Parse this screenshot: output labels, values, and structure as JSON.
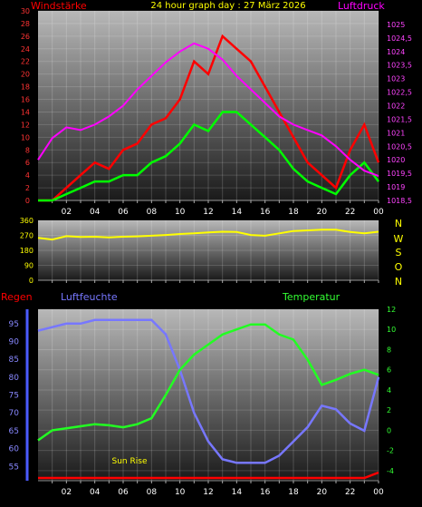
{
  "header": {
    "left_label": "Windstärke",
    "title": "24 hour graph day : 27 März 2026",
    "right_label": "Luftdruck"
  },
  "middle": {
    "compass": [
      "N",
      "W",
      "S",
      "O",
      "N"
    ]
  },
  "bottom_header": {
    "rain_label": "Regen",
    "humidity_label": "Luftfeuchte",
    "temp_label": "Temperatur"
  },
  "annotations": {
    "sunrise": "Sun Rise"
  },
  "colors": {
    "wind_gust": "#ff0000",
    "wind_avg": "#00ff00",
    "pressure": "#ff00ff",
    "direction": "#ffff00",
    "humidity": "#7777ff",
    "temperature": "#22ff22",
    "rain": "#ff0000",
    "header_title": "#ffff00",
    "axis_text": "#ffffff"
  },
  "chart_data": [
    {
      "type": "line",
      "x_ticks": [
        "02",
        "04",
        "06",
        "08",
        "10",
        "12",
        "14",
        "16",
        "18",
        "20",
        "22",
        "00"
      ],
      "ylim_left": [
        0,
        30
      ],
      "yticks_left": [
        0,
        2,
        4,
        6,
        8,
        10,
        12,
        14,
        16,
        18,
        20,
        22,
        24,
        26,
        28,
        30
      ],
      "ylim_right": [
        1018.5,
        1025.5
      ],
      "yticks_right": [
        "1018,5",
        "1019",
        "1019,5",
        "1020",
        "1020,5",
        "1021",
        "1021,5",
        "1022",
        "1022,5",
        "1023",
        "1023,5",
        "1024",
        "1024,5",
        "1025"
      ],
      "x_hours": [
        0,
        1,
        2,
        3,
        4,
        5,
        6,
        7,
        8,
        9,
        10,
        11,
        12,
        13,
        14,
        15,
        16,
        17,
        18,
        19,
        20,
        21,
        22,
        23,
        24
      ],
      "series": [
        {
          "name": "Windstärke",
          "axis": "left",
          "values": [
            0,
            0,
            2,
            4,
            6,
            5,
            8,
            9,
            12,
            13,
            16,
            22,
            20,
            26,
            24,
            22,
            18,
            14,
            10,
            6,
            4,
            2,
            8,
            12,
            6
          ]
        },
        {
          "name": "Windstärke",
          "axis": "left",
          "values": [
            0,
            0,
            1,
            2,
            3,
            3,
            4,
            4,
            6,
            7,
            9,
            12,
            11,
            14,
            14,
            12,
            10,
            8,
            5,
            3,
            2,
            1,
            4,
            6,
            3
          ]
        },
        {
          "name": "Luftdruck",
          "axis": "right",
          "values": [
            1020,
            1020.8,
            1021.2,
            1021.1,
            1021.3,
            1021.6,
            1022,
            1022.6,
            1023.1,
            1023.6,
            1024,
            1024.3,
            1024.1,
            1023.7,
            1023.1,
            1022.6,
            1022.1,
            1021.6,
            1021.3,
            1021.1,
            1020.9,
            1020.5,
            1020,
            1019.6,
            1019.4
          ]
        }
      ]
    },
    {
      "type": "line",
      "ylim": [
        0,
        360
      ],
      "yticks": [
        0,
        90,
        180,
        270,
        360
      ],
      "x_hours": [
        0,
        1,
        2,
        3,
        4,
        5,
        6,
        7,
        8,
        9,
        10,
        11,
        12,
        13,
        14,
        15,
        16,
        17,
        18,
        19,
        20,
        21,
        22,
        23,
        24
      ],
      "series": [
        {
          "name": "Windrichtung",
          "values": [
            255,
            245,
            265,
            260,
            262,
            258,
            262,
            264,
            268,
            272,
            278,
            282,
            288,
            292,
            290,
            272,
            268,
            282,
            296,
            300,
            304,
            304,
            290,
            282,
            292
          ]
        }
      ]
    },
    {
      "type": "line",
      "x_ticks": [
        "02",
        "04",
        "06",
        "08",
        "10",
        "12",
        "14",
        "16",
        "18",
        "20",
        "22",
        "00"
      ],
      "ylim_left": [
        51,
        99
      ],
      "yticks_left": [
        55,
        60,
        65,
        70,
        75,
        80,
        85,
        90,
        95
      ],
      "ylim_right": [
        -5,
        12
      ],
      "yticks_right": [
        -4,
        -2,
        0,
        2,
        4,
        6,
        8,
        10,
        12
      ],
      "x_hours": [
        0,
        1,
        2,
        3,
        4,
        5,
        6,
        7,
        8,
        9,
        10,
        11,
        12,
        13,
        14,
        15,
        16,
        17,
        18,
        19,
        20,
        21,
        22,
        23,
        24
      ],
      "series": [
        {
          "name": "Luftfeuchte",
          "axis": "left",
          "values": [
            93,
            94,
            95,
            95,
            96,
            96,
            96,
            96,
            96,
            92,
            82,
            70,
            62,
            57,
            56,
            56,
            56,
            58,
            62,
            66,
            72,
            71,
            67,
            65,
            80
          ]
        },
        {
          "name": "Temperatur",
          "axis": "right",
          "values": [
            -1,
            0,
            0.2,
            0.4,
            0.6,
            0.5,
            0.3,
            0.6,
            1.2,
            3.5,
            6,
            7.5,
            8.5,
            9.5,
            10,
            10.5,
            10.5,
            9.5,
            9,
            7,
            4.5,
            5,
            5.6,
            6,
            5.5
          ]
        },
        {
          "name": "Regen",
          "axis": "left",
          "values": [
            0,
            0,
            0,
            0,
            0,
            0,
            0,
            0,
            0,
            0,
            0,
            0,
            0,
            0,
            0,
            0,
            0,
            0,
            0,
            0,
            0,
            0,
            0,
            0,
            1
          ]
        }
      ]
    }
  ]
}
